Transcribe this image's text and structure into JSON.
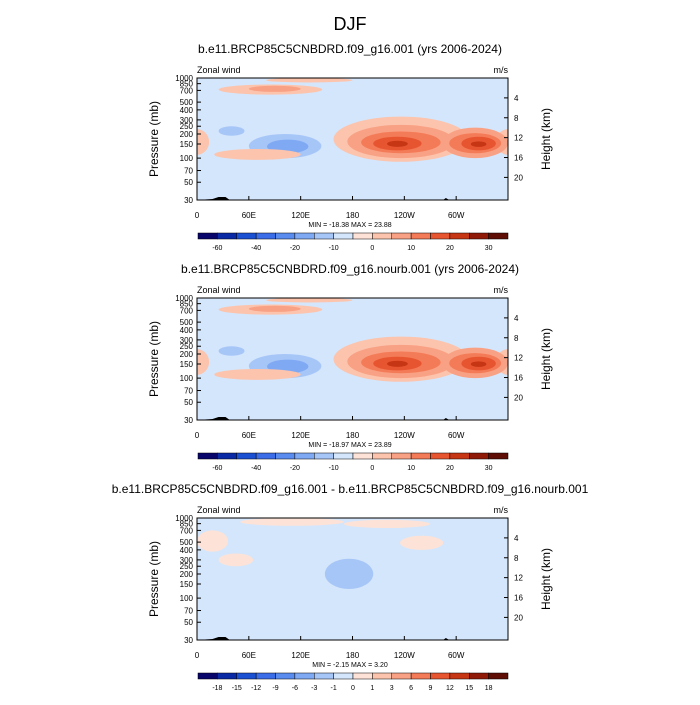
{
  "page_title": "DJF",
  "colors": {
    "background_field": "#d4e6fb",
    "outline": "#000000"
  },
  "chart_data": [
    {
      "type": "contour",
      "title": "b.e11.BRCP85C5CNBDRD.f09_g16.001 (yrs 2006-2024)",
      "left_label": "Zonal wind",
      "right_label": "m/s",
      "ylabel": "Pressure (mb)",
      "ylabel_right": "Height (km)",
      "x_ticks": [
        "0",
        "60E",
        "120E",
        "180",
        "120W",
        "60W"
      ],
      "x_tick_lon": [
        0,
        60,
        120,
        180,
        240,
        300
      ],
      "xlim": [
        0,
        360
      ],
      "y_ticks": [
        "30",
        "50",
        "70",
        "100",
        "150",
        "200",
        "250",
        "300",
        "400",
        "500",
        "700",
        "850",
        "1000"
      ],
      "y_tick_values": [
        30,
        50,
        70,
        100,
        150,
        200,
        250,
        300,
        400,
        500,
        700,
        850,
        1000
      ],
      "ylim": [
        1000,
        30
      ],
      "yscale": "log",
      "height_ticks": [
        "4",
        "8",
        "12",
        "16",
        "20"
      ],
      "height_values": [
        4,
        8,
        12,
        16,
        20
      ],
      "stats": "MIN = -18.38  MAX =  23.88",
      "colorbar": {
        "labels": [
          "-60",
          "-40",
          "-20",
          "-10",
          "0",
          "10",
          "20",
          "30"
        ],
        "colors": [
          "#08066b",
          "#0a2aa5",
          "#1c50d2",
          "#3b6de8",
          "#5a8cef",
          "#80a9f4",
          "#a7c6f8",
          "#d4e6fb",
          "#fde3d7",
          "#fcc4ad",
          "#f9a184",
          "#f47b57",
          "#e75530",
          "#c63514",
          "#8f1a07",
          "#5e0e05"
        ]
      },
      "features": [
        {
          "name": "westerly jet",
          "lon": 235,
          "p": 150,
          "value": 23.88
        },
        {
          "name": "westerly jet",
          "lon": 325,
          "p": 150,
          "value": 22
        },
        {
          "name": "easterly core",
          "lon": 105,
          "p": 150,
          "value": -18.38
        }
      ]
    },
    {
      "type": "contour",
      "title": "b.e11.BRCP85C5CNBDRD.f09_g16.nourb.001 (yrs 2006-2024)",
      "left_label": "Zonal wind",
      "right_label": "m/s",
      "ylabel": "Pressure (mb)",
      "ylabel_right": "Height (km)",
      "x_ticks": [
        "0",
        "60E",
        "120E",
        "180",
        "120W",
        "60W"
      ],
      "x_tick_lon": [
        0,
        60,
        120,
        180,
        240,
        300
      ],
      "xlim": [
        0,
        360
      ],
      "y_ticks": [
        "30",
        "50",
        "70",
        "100",
        "150",
        "200",
        "250",
        "300",
        "400",
        "500",
        "700",
        "850",
        "1000"
      ],
      "y_tick_values": [
        30,
        50,
        70,
        100,
        150,
        200,
        250,
        300,
        400,
        500,
        700,
        850,
        1000
      ],
      "ylim": [
        1000,
        30
      ],
      "yscale": "log",
      "height_ticks": [
        "4",
        "8",
        "12",
        "16",
        "20"
      ],
      "height_values": [
        4,
        8,
        12,
        16,
        20
      ],
      "stats": "MIN = -18.97  MAX =  23.89",
      "colorbar": {
        "labels": [
          "-60",
          "-40",
          "-20",
          "-10",
          "0",
          "10",
          "20",
          "30"
        ],
        "colors": [
          "#08066b",
          "#0a2aa5",
          "#1c50d2",
          "#3b6de8",
          "#5a8cef",
          "#80a9f4",
          "#a7c6f8",
          "#d4e6fb",
          "#fde3d7",
          "#fcc4ad",
          "#f9a184",
          "#f47b57",
          "#e75530",
          "#c63514",
          "#8f1a07",
          "#5e0e05"
        ]
      },
      "features": [
        {
          "name": "westerly jet",
          "lon": 235,
          "p": 150,
          "value": 23.89
        },
        {
          "name": "westerly jet",
          "lon": 325,
          "p": 150,
          "value": 22
        },
        {
          "name": "easterly core",
          "lon": 105,
          "p": 150,
          "value": -18.97
        }
      ]
    },
    {
      "type": "contour",
      "title": "b.e11.BRCP85C5CNBDRD.f09_g16.001 - b.e11.BRCP85C5CNBDRD.f09_g16.nourb.001",
      "left_label": "Zonal wind",
      "right_label": "m/s",
      "ylabel": "Pressure (mb)",
      "ylabel_right": "Height (km)",
      "x_ticks": [
        "0",
        "60E",
        "120E",
        "180",
        "120W",
        "60W"
      ],
      "x_tick_lon": [
        0,
        60,
        120,
        180,
        240,
        300
      ],
      "xlim": [
        0,
        360
      ],
      "y_ticks": [
        "30",
        "50",
        "70",
        "100",
        "150",
        "200",
        "250",
        "300",
        "400",
        "500",
        "700",
        "850",
        "1000"
      ],
      "y_tick_values": [
        30,
        50,
        70,
        100,
        150,
        200,
        250,
        300,
        400,
        500,
        700,
        850,
        1000
      ],
      "ylim": [
        1000,
        30
      ],
      "yscale": "log",
      "height_ticks": [
        "4",
        "8",
        "12",
        "16",
        "20"
      ],
      "height_values": [
        4,
        8,
        12,
        16,
        20
      ],
      "stats": "MIN =  -2.15  MAX =   3.20",
      "colorbar": {
        "labels": [
          "-18",
          "-15",
          "-12",
          "-9",
          "-6",
          "-3",
          "-1",
          "0",
          "1",
          "3",
          "6",
          "9",
          "12",
          "15",
          "18"
        ],
        "colors": [
          "#08066b",
          "#0a2aa5",
          "#1c50d2",
          "#3b6de8",
          "#5a8cef",
          "#80a9f4",
          "#a7c6f8",
          "#d4e6fb",
          "#fde3d7",
          "#fcc4ad",
          "#f9a184",
          "#f47b57",
          "#e75530",
          "#c63514",
          "#8f1a07",
          "#5e0e05"
        ]
      },
      "features": [
        {
          "name": "negative difference",
          "lon": 175,
          "p": 200,
          "value": -2.15
        },
        {
          "name": "positive difference",
          "lon": 40,
          "p": 300,
          "value": 1
        }
      ]
    }
  ]
}
